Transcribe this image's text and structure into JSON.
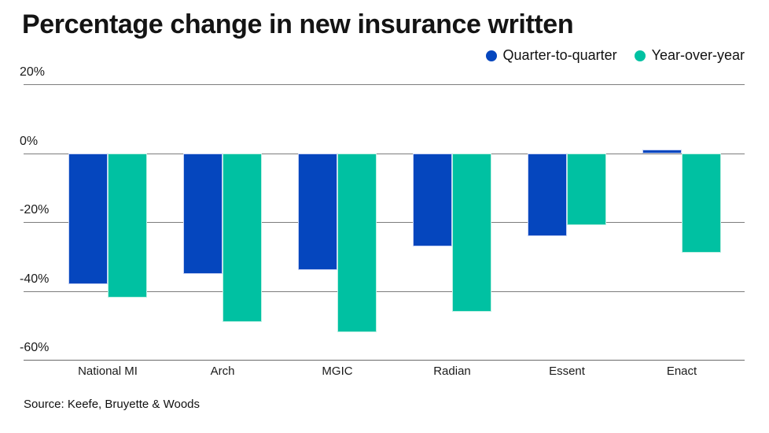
{
  "title": "Percentage change in new insurance written",
  "legend": {
    "items": [
      {
        "label": "Quarter-to-quarter"
      },
      {
        "label": "Year-over-year"
      }
    ]
  },
  "source": "Source: Keefe, Bruyette & Woods",
  "colors": {
    "quarter_to_quarter": "#0546be",
    "year_over_year": "#00c1a2",
    "quarter_to_quarter_edge": "#c7d2f4",
    "year_over_year_edge": "#bdefe2",
    "gridline": "#7d7d7d",
    "text": "#1a1a1a"
  },
  "chart_data": {
    "type": "bar",
    "title": "Percentage change in new insurance written",
    "categories": [
      "National MI",
      "Arch",
      "MGIC",
      "Radian",
      "Essent",
      "Enact"
    ],
    "series": [
      {
        "name": "Quarter-to-quarter",
        "color": "#0546be",
        "edge": "#c7d2f4",
        "values": [
          -38,
          -35,
          -34,
          -27,
          -24,
          1
        ]
      },
      {
        "name": "Year-over-year",
        "color": "#00c1a2",
        "edge": "#bdefe2",
        "values": [
          -42,
          -49,
          -52,
          -46,
          -21,
          -29
        ]
      }
    ],
    "xlabel": "",
    "ylabel": "",
    "unit": "%",
    "ylim": [
      -60,
      20
    ],
    "y_ticks": [
      {
        "value": 20,
        "label": "20%"
      },
      {
        "value": 0,
        "label": "0%"
      },
      {
        "value": -20,
        "label": "-20%"
      },
      {
        "value": -40,
        "label": "-40%"
      },
      {
        "value": -60,
        "label": "-60%"
      }
    ],
    "grid": true,
    "legend_position": "top-right",
    "source": "Source: Keefe, Bruyette & Woods"
  }
}
